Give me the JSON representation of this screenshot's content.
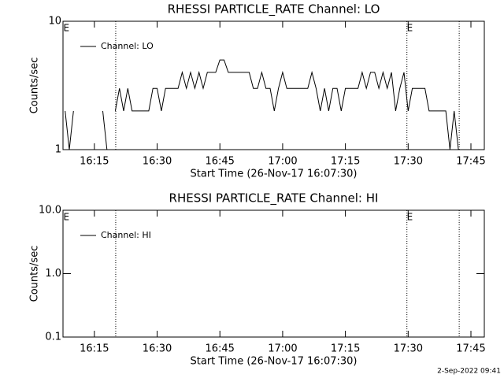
{
  "chart_data": [
    {
      "type": "line",
      "title": "RHESSI PARTICLE_RATE Channel: LO",
      "xlabel": "Start Time (26-Nov-17 16:07:30)",
      "ylabel": "Counts/sec",
      "log_y": true,
      "xlim": [
        7.5,
        108.2
      ],
      "ylim": [
        1,
        10
      ],
      "xticks": [
        {
          "value": 15,
          "label": "16:15"
        },
        {
          "value": 30,
          "label": "16:30"
        },
        {
          "value": 45,
          "label": "16:45"
        },
        {
          "value": 60,
          "label": "17:00"
        },
        {
          "value": 75,
          "label": "17:15"
        },
        {
          "value": 90,
          "label": "17:30"
        },
        {
          "value": 105,
          "label": "17:45"
        }
      ],
      "yticks": [
        1,
        10
      ],
      "markers": [
        20.1,
        89.7,
        102.2
      ],
      "annotations": [
        {
          "text": "E",
          "x": 8.3
        },
        {
          "text": "E",
          "x": 90.4
        }
      ],
      "legend": "upper left",
      "series": [
        {
          "name": "Channel: LO",
          "color": "#000000",
          "x": [
            8,
            9,
            10,
            11,
            12,
            13,
            14,
            15,
            16,
            17,
            18,
            19,
            20,
            21,
            22,
            23,
            24,
            25,
            26,
            27,
            28,
            29,
            30,
            31,
            32,
            33,
            34,
            35,
            36,
            37,
            38,
            39,
            40,
            41,
            42,
            43,
            44,
            45,
            46,
            47,
            48,
            49,
            50,
            51,
            52,
            53,
            54,
            55,
            56,
            57,
            58,
            59,
            60,
            61,
            62,
            63,
            64,
            65,
            66,
            67,
            68,
            69,
            70,
            71,
            72,
            73,
            74,
            75,
            76,
            77,
            78,
            79,
            80,
            81,
            82,
            83,
            84,
            85,
            86,
            87,
            88,
            89,
            90,
            91,
            92,
            93,
            94,
            95,
            96,
            97,
            98,
            99,
            100,
            101,
            102
          ],
          "values": [
            2,
            1,
            2,
            null,
            null,
            null,
            null,
            null,
            null,
            2,
            1,
            null,
            2,
            3,
            2,
            3,
            2,
            2,
            2,
            2,
            2,
            3,
            3,
            2,
            3,
            3,
            3,
            3,
            4,
            3,
            4,
            3,
            4,
            3,
            4,
            4,
            4,
            5,
            5,
            4,
            4,
            4,
            4,
            4,
            4,
            3,
            3,
            4,
            3,
            3,
            2,
            3,
            4,
            3,
            3,
            3,
            3,
            3,
            3,
            4,
            3,
            2,
            3,
            2,
            3,
            3,
            2,
            3,
            3,
            3,
            3,
            4,
            3,
            4,
            4,
            3,
            4,
            3,
            4,
            2,
            3,
            4,
            2,
            3,
            3,
            3,
            3,
            2,
            2,
            2,
            2,
            2,
            1,
            2,
            1
          ]
        }
      ]
    },
    {
      "type": "line",
      "title": "RHESSI PARTICLE_RATE Channel: HI",
      "xlabel": "Start Time (26-Nov-17 16:07:30)",
      "ylabel": "Counts/sec",
      "log_y": true,
      "xlim": [
        7.5,
        108.2
      ],
      "ylim": [
        0.1,
        10
      ],
      "xticks": [
        {
          "value": 15,
          "label": "16:15"
        },
        {
          "value": 30,
          "label": "16:30"
        },
        {
          "value": 45,
          "label": "16:45"
        },
        {
          "value": 60,
          "label": "17:00"
        },
        {
          "value": 75,
          "label": "17:15"
        },
        {
          "value": 90,
          "label": "17:30"
        },
        {
          "value": 105,
          "label": "17:45"
        }
      ],
      "yticks": [
        0.1,
        {
          "value": 1,
          "label": "1.0"
        },
        {
          "value": 10,
          "label": "10.0"
        }
      ],
      "markers": [
        20.1,
        89.7,
        102.2
      ],
      "annotations": [
        {
          "text": "E",
          "x": 8.3
        },
        {
          "text": "E",
          "x": 90.4
        }
      ],
      "legend": "upper left",
      "series": [
        {
          "name": "Channel: HI",
          "color": "#000000",
          "x": [],
          "values": []
        }
      ]
    }
  ],
  "footer": "2-Sep-2022 09:41"
}
